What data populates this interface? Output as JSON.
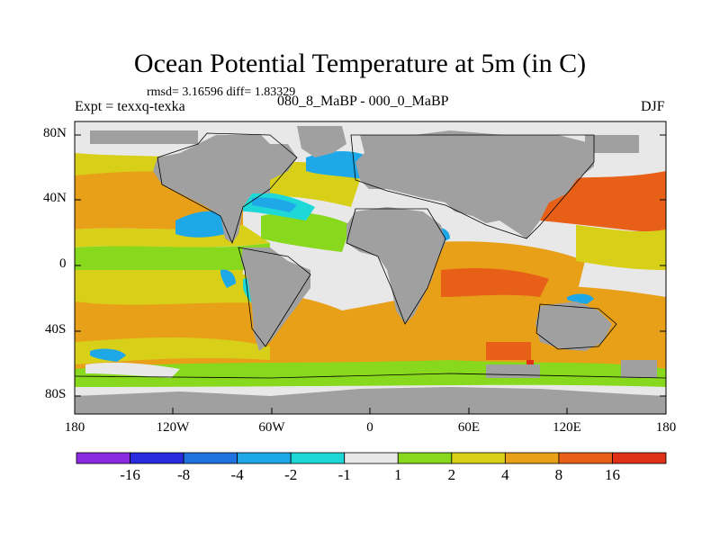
{
  "header": {
    "title": "Ocean Potential Temperature at 5m (in C)",
    "stats": "rmsd= 3.16596 diff= 1.83329",
    "experiment": "Expt = texxq-texka",
    "difference_label": "080_8_MaBP - 000_0_MaBP",
    "season": "DJF"
  },
  "axes": {
    "lat_labels": [
      "80N",
      "40N",
      "0",
      "40S",
      "80S"
    ],
    "lon_labels": [
      "180",
      "120W",
      "60W",
      "0",
      "60E",
      "120E",
      "180"
    ]
  },
  "colorbar": {
    "labels": [
      "-16",
      "-8",
      "-4",
      "-2",
      "-1",
      "1",
      "2",
      "4",
      "8",
      "16"
    ],
    "colors": [
      "#8a2be2",
      "#2a2adf",
      "#1f72e0",
      "#1ea8e8",
      "#1ed8d8",
      "#e8e8e8",
      "#88d81e",
      "#d8d018",
      "#e8a018",
      "#e86018",
      "#e03018"
    ]
  },
  "colors": {
    "land": "#a0a0a0",
    "background": "#e8e8e8"
  }
}
